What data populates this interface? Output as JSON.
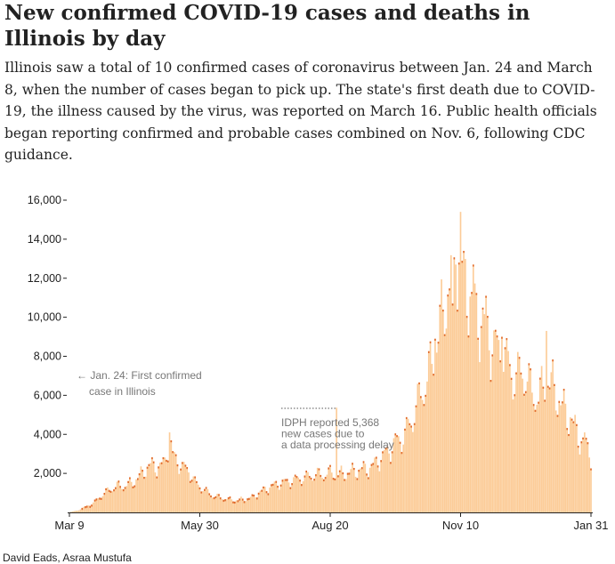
{
  "title": "New confirmed COVID-19 cases and deaths in Illinois by day",
  "subtitle": "Illinois saw a total of 10 confirmed cases of coronavirus between Jan. 24 and March 8, when the number of cases began to pick up. The state's first death due to COVID-19, the illness caused by the virus, was reported on March 16. Public health officials began reporting confirmed and probable cases combined on Nov. 6, following CDC guidance.",
  "credit": "David Eads, Asraa Mustufa",
  "colors": {
    "bar": "#fccc98",
    "death": "#e0692a",
    "axis": "#222222",
    "annotation": "#777777"
  },
  "chart_data": {
    "type": "bar",
    "title": "",
    "xlabel": "",
    "ylabel": "",
    "ylim": [
      0,
      16000
    ],
    "yticks": [
      2000,
      4000,
      6000,
      8000,
      10000,
      12000,
      14000,
      16000
    ],
    "ytick_labels": [
      "2,000",
      "4,000",
      "6,000",
      "8,000",
      "10,000",
      "12,000",
      "14,000",
      "16,000"
    ],
    "xticks": [
      {
        "label": "Mar 9",
        "day": 0
      },
      {
        "label": "May 30",
        "day": 82
      },
      {
        "label": "Aug 20",
        "day": 164
      },
      {
        "label": "Nov 10",
        "day": 246
      },
      {
        "label": "Jan 31",
        "day": 328
      }
    ],
    "x_start": "Mar 9",
    "x_end": "Jan 31",
    "series": [
      {
        "name": "",
        "description": "estimated daily new confirmed cases (one bar per day, Mar 9 through Jan 31)",
        "anchors": [
          [
            0,
            10
          ],
          [
            5,
            100
          ],
          [
            10,
            300
          ],
          [
            15,
            500
          ],
          [
            20,
            900
          ],
          [
            25,
            1200
          ],
          [
            30,
            1400
          ],
          [
            35,
            1400
          ],
          [
            40,
            1600
          ],
          [
            45,
            2000
          ],
          [
            50,
            2500
          ],
          [
            55,
            2400
          ],
          [
            60,
            2600
          ],
          [
            63,
            4000
          ],
          [
            65,
            3000
          ],
          [
            70,
            2500
          ],
          [
            75,
            2200
          ],
          [
            80,
            1500
          ],
          [
            85,
            1200
          ],
          [
            90,
            900
          ],
          [
            95,
            800
          ],
          [
            100,
            700
          ],
          [
            105,
            650
          ],
          [
            110,
            700
          ],
          [
            115,
            800
          ],
          [
            120,
            1100
          ],
          [
            125,
            1300
          ],
          [
            130,
            1500
          ],
          [
            135,
            1600
          ],
          [
            140,
            1700
          ],
          [
            145,
            1800
          ],
          [
            150,
            1900
          ],
          [
            155,
            2000
          ],
          [
            160,
            2000
          ],
          [
            165,
            2100
          ],
          [
            170,
            2000
          ],
          [
            175,
            2100
          ],
          [
            180,
            2200
          ],
          [
            185,
            2300
          ],
          [
            190,
            2400
          ],
          [
            195,
            2800
          ],
          [
            200,
            3200
          ],
          [
            205,
            3700
          ],
          [
            210,
            4000
          ],
          [
            215,
            4800
          ],
          [
            220,
            6000
          ],
          [
            225,
            7000
          ],
          [
            230,
            8500
          ],
          [
            235,
            10500
          ],
          [
            240,
            12500
          ],
          [
            245,
            13000
          ],
          [
            250,
            12000
          ],
          [
            255,
            10500
          ],
          [
            260,
            10000
          ],
          [
            265,
            9000
          ],
          [
            270,
            8500
          ],
          [
            275,
            8000
          ],
          [
            280,
            7000
          ],
          [
            285,
            7500
          ],
          [
            290,
            6500
          ],
          [
            295,
            6000
          ],
          [
            300,
            7000
          ],
          [
            305,
            6500
          ],
          [
            310,
            5500
          ],
          [
            315,
            5000
          ],
          [
            320,
            4000
          ],
          [
            325,
            3500
          ],
          [
            328,
            3000
          ]
        ],
        "spikes": [
          {
            "day": 63,
            "value": 4100
          },
          {
            "day": 168,
            "value": 5368
          },
          {
            "day": 230,
            "value": 8900
          },
          {
            "day": 241,
            "value": 10700
          },
          {
            "day": 243,
            "value": 12700
          },
          {
            "day": 245,
            "value": 12800
          },
          {
            "day": 246,
            "value": 15400
          },
          {
            "day": 248,
            "value": 13400
          },
          {
            "day": 254,
            "value": 12700
          },
          {
            "day": 262,
            "value": 11100
          },
          {
            "day": 272,
            "value": 9000
          },
          {
            "day": 300,
            "value": 9300
          },
          {
            "day": 324,
            "value": 4100
          }
        ]
      }
    ],
    "annotations": [
      {
        "lines": [
          "← Jan. 24: First confirmed",
          "case in Illinois"
        ]
      },
      {
        "lines": [
          "IDPH reported 5,368",
          "new cases due to",
          "a data processing delay"
        ]
      }
    ]
  }
}
